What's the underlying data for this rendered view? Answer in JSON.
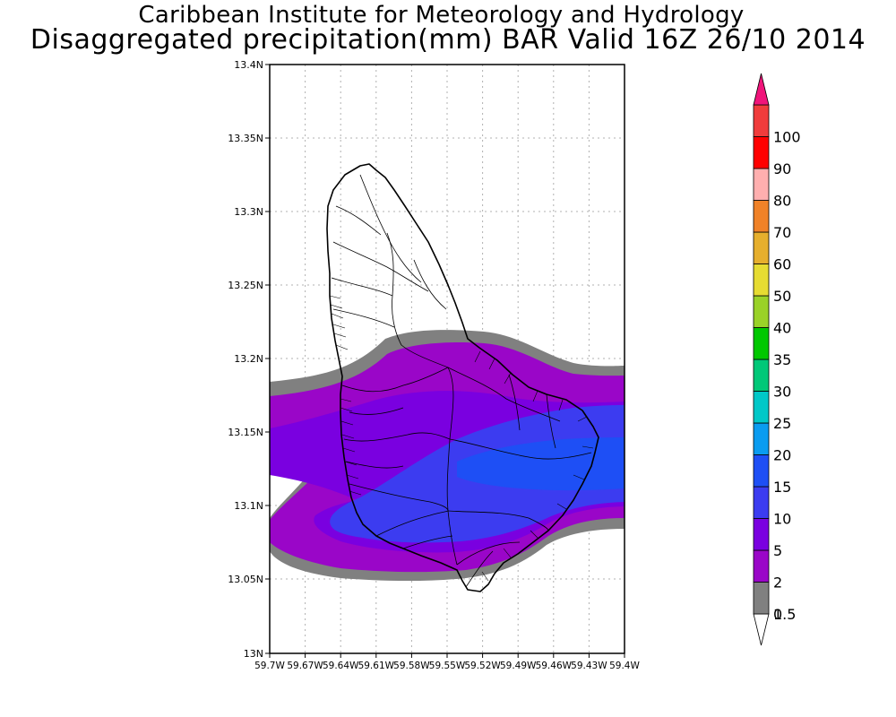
{
  "header": {
    "line1": "Caribbean Institute for Meteorology and Hydrology",
    "line2": "Disaggregated precipitation(mm) BAR Valid 16Z 26/10 2014"
  },
  "map": {
    "lat_ticks": [
      "13.4N",
      "13.35N",
      "13.3N",
      "13.25N",
      "13.2N",
      "13.15N",
      "13.1N",
      "13.05N",
      "13N"
    ],
    "lon_ticks": [
      "59.7W",
      "59.67W",
      "59.64W",
      "59.61W",
      "59.58W",
      "59.55W",
      "59.52W",
      "59.49W",
      "59.46W",
      "59.43W",
      "59.4W"
    ]
  },
  "legend": {
    "levels": [
      {
        "label": "0.5",
        "color": "#ffffff"
      },
      {
        "label": "1",
        "color": "#808080"
      },
      {
        "label": "2",
        "color": "#9a06c8"
      },
      {
        "label": "5",
        "color": "#7a00e0"
      },
      {
        "label": "10",
        "color": "#3c3cf0"
      },
      {
        "label": "15",
        "color": "#1e4ff5"
      },
      {
        "label": "20",
        "color": "#0a9cf0"
      },
      {
        "label": "25",
        "color": "#00c8c8"
      },
      {
        "label": "30",
        "color": "#00c878"
      },
      {
        "label": "35",
        "color": "#00c800"
      },
      {
        "label": "40",
        "color": "#9ad228"
      },
      {
        "label": "50",
        "color": "#e6dc32"
      },
      {
        "label": "60",
        "color": "#e6af2d"
      },
      {
        "label": "70",
        "color": "#f08228"
      },
      {
        "label": "80",
        "color": "#ffafaf"
      },
      {
        "label": "90",
        "color": "#ff0000"
      },
      {
        "label": "100",
        "color": "#f03c3c"
      },
      {
        "label": "",
        "color": "#f0147a"
      }
    ]
  }
}
